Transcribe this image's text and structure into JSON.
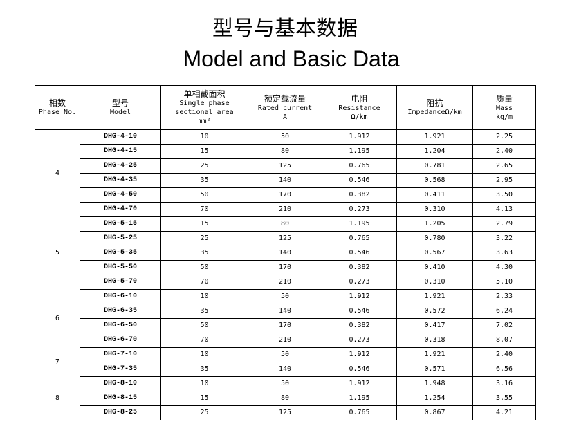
{
  "title_cn": "型号与基本数据",
  "title_en": "Model and Basic Data",
  "headers": [
    {
      "cn": "相数",
      "en": [
        "Phase No."
      ]
    },
    {
      "cn": "型号",
      "en": [
        "Model"
      ]
    },
    {
      "cn": "单相截面积",
      "en": [
        "Single phase",
        "sectional area",
        "mm²"
      ]
    },
    {
      "cn": "额定载流量",
      "en": [
        "Rated current",
        "A"
      ]
    },
    {
      "cn": "电阻",
      "en": [
        "Resistance",
        "Ω/km"
      ]
    },
    {
      "cn": "阻抗",
      "en": [
        "ImpedanceΩ/km"
      ]
    },
    {
      "cn": "质量",
      "en": [
        "Mass",
        "kg/m"
      ]
    }
  ],
  "groups": [
    {
      "phase": "4",
      "rows": [
        [
          "DHG-4-10",
          "10",
          "50",
          "1.912",
          "1.921",
          "2.25"
        ],
        [
          "DHG-4-15",
          "15",
          "80",
          "1.195",
          "1.204",
          "2.40"
        ],
        [
          "DHG-4-25",
          "25",
          "125",
          "0.765",
          "0.781",
          "2.65"
        ],
        [
          "DHG-4-35",
          "35",
          "140",
          "0.546",
          "0.568",
          "2.95"
        ],
        [
          "DHG-4-50",
          "50",
          "170",
          "0.382",
          "0.411",
          "3.50"
        ],
        [
          "DHG-4-70",
          "70",
          "210",
          "0.273",
          "0.310",
          "4.13"
        ]
      ]
    },
    {
      "phase": "5",
      "rows": [
        [
          "DHG-5-15",
          "15",
          "80",
          "1.195",
          "1.205",
          "2.79"
        ],
        [
          "DHG-5-25",
          "25",
          "125",
          "0.765",
          "0.780",
          "3.22"
        ],
        [
          "DHG-5-35",
          "35",
          "140",
          "0.546",
          "0.567",
          "3.63"
        ],
        [
          "DHG-5-50",
          "50",
          "170",
          "0.382",
          "0.410",
          "4.30"
        ],
        [
          "DHG-5-70",
          "70",
          "210",
          "0.273",
          "0.310",
          "5.10"
        ]
      ]
    },
    {
      "phase": "6",
      "rows": [
        [
          "DHG-6-10",
          "10",
          "50",
          "1.912",
          "1.921",
          "2.33"
        ],
        [
          "DHG-6-35",
          "35",
          "140",
          "0.546",
          "0.572",
          "6.24"
        ],
        [
          "DHG-6-50",
          "50",
          "170",
          "0.382",
          "0.417",
          "7.02"
        ],
        [
          "DHG-6-70",
          "70",
          "210",
          "0.273",
          "0.318",
          "8.07"
        ]
      ]
    },
    {
      "phase": "7",
      "rows": [
        [
          "DHG-7-10",
          "10",
          "50",
          "1.912",
          "1.921",
          "2.40"
        ],
        [
          "DHG-7-35",
          "35",
          "140",
          "0.546",
          "0.571",
          "6.56"
        ]
      ]
    },
    {
      "phase": "8",
      "rows": [
        [
          "DHG-8-10",
          "10",
          "50",
          "1.912",
          "1.948",
          "3.16"
        ],
        [
          "DHG-8-15",
          "15",
          "80",
          "1.195",
          "1.254",
          "3.55"
        ],
        [
          "DHG-8-25",
          "25",
          "125",
          "0.765",
          "0.867",
          "4.21"
        ]
      ]
    }
  ]
}
